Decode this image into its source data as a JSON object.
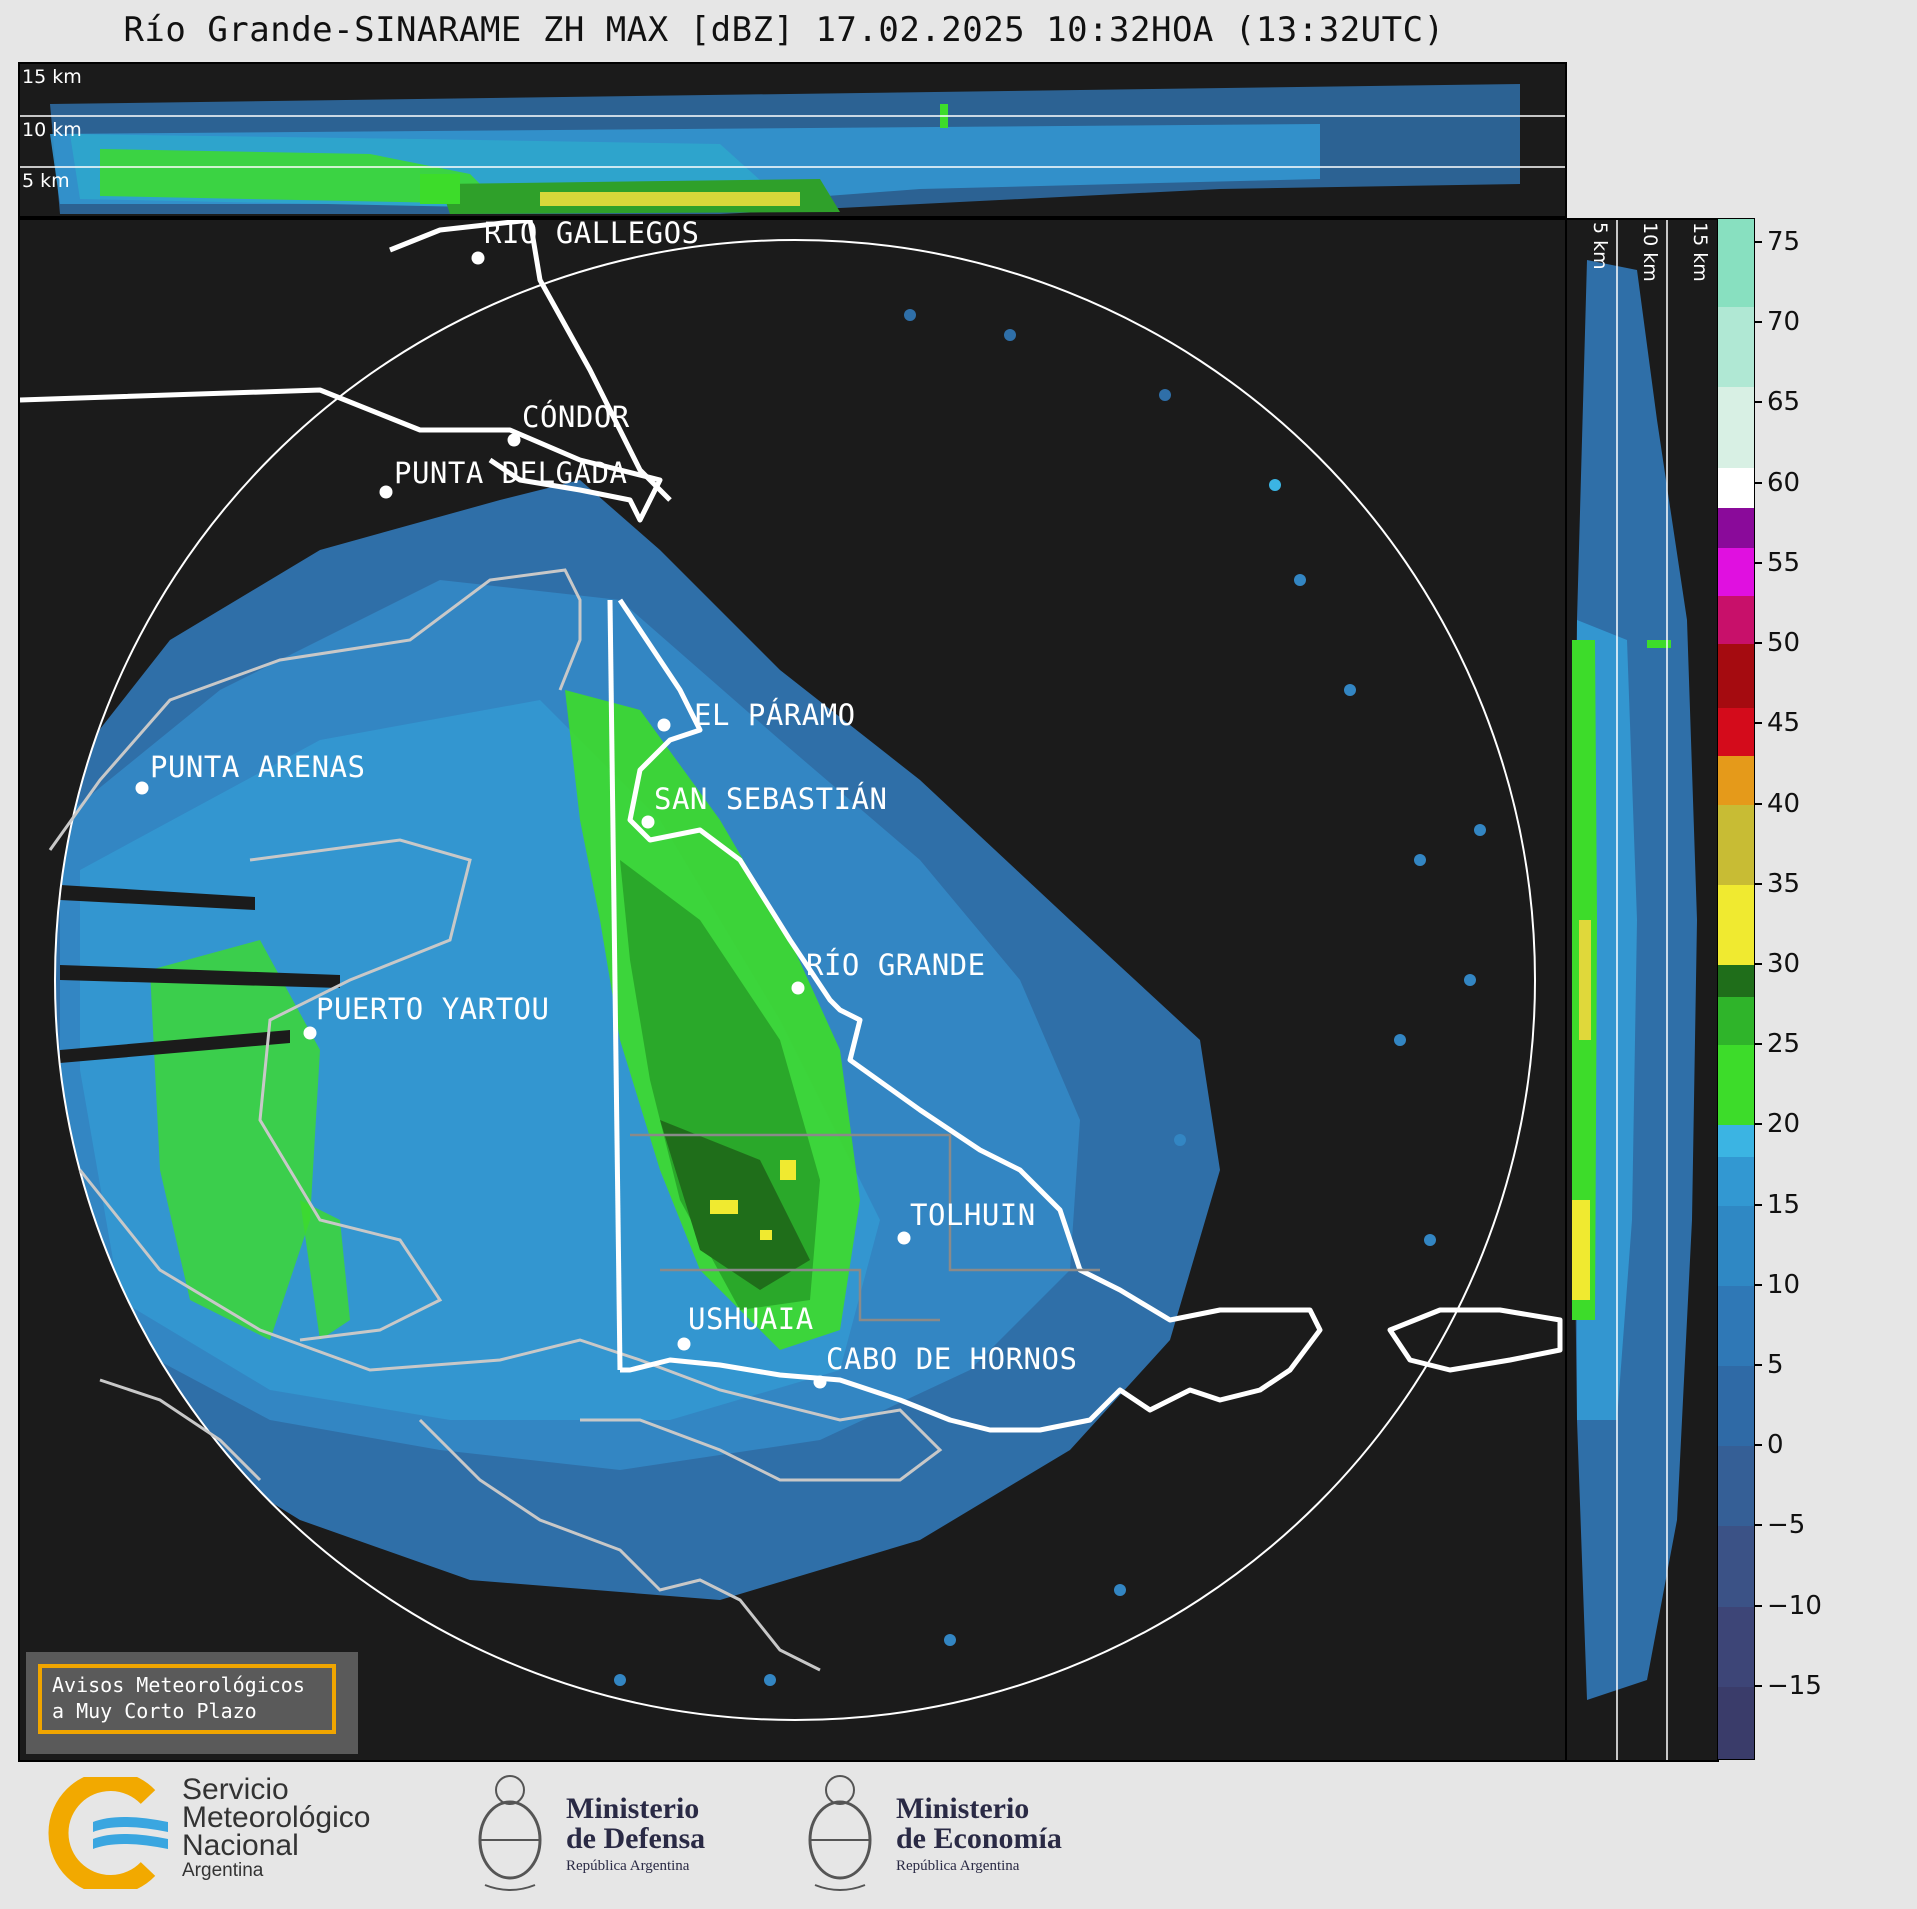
{
  "title": "Río Grande-SINARAME ZH MAX [dBZ] 17.02.2025 10:32HOA (13:32UTC)",
  "top_section": {
    "altitude_labels": [
      "15 km",
      "10 km",
      "5 km"
    ]
  },
  "side_section": {
    "altitude_labels": [
      "5 km",
      "10 km",
      "15 km"
    ]
  },
  "cities": [
    {
      "name": "RÍO GALLEGOS"
    },
    {
      "name": "CÓNDOR"
    },
    {
      "name": "PUNTA DELGADA"
    },
    {
      "name": "EL PÁRAMO"
    },
    {
      "name": "PUNTA ARENAS"
    },
    {
      "name": "SAN SEBASTIÁN"
    },
    {
      "name": "RÍO GRANDE"
    },
    {
      "name": "PUERTO YARTOU"
    },
    {
      "name": "TOLHUIN"
    },
    {
      "name": "USHUAIA"
    },
    {
      "name": "CABO DE HORNOS"
    }
  ],
  "colorbar": {
    "unit": "dBZ",
    "range": [
      -19.5,
      76.5
    ],
    "ticks": [
      "75",
      "70",
      "65",
      "60",
      "55",
      "50",
      "45",
      "40",
      "35",
      "30",
      "25",
      "20",
      "15",
      "10",
      "5",
      "0",
      "−5",
      "−10",
      "−15"
    ],
    "colors": {
      "very_low": "#3d3f6b",
      "low_blue": "#2d6aa5",
      "mid_blue": "#2f95cf",
      "cyan": "#3bb4e3",
      "green": "#3ddc2a",
      "dark_green": "#1f6e1a",
      "yellow": "#f0ea30",
      "orange": "#e59a1a",
      "red": "#d40b1b",
      "magenta": "#e010e0",
      "purple": "#8a0a9a",
      "white": "#ffffff",
      "aqua_high": "#88e0c0"
    }
  },
  "notice": {
    "line1": "Avisos Meteorológicos",
    "line2": "a Muy Corto Plazo"
  },
  "logos": {
    "smn": {
      "line1": "Servicio",
      "line2": "Meteorológico",
      "line3": "Nacional",
      "line4": "Argentina"
    },
    "defensa": {
      "line1": "Ministerio",
      "line2": "de Defensa",
      "sub": "República Argentina"
    },
    "economia": {
      "line1": "Ministerio",
      "line2": "de Economía",
      "sub": "República Argentina"
    }
  }
}
